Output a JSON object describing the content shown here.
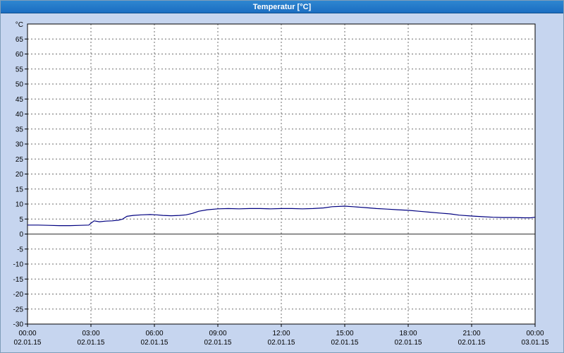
{
  "window": {
    "title": "Temperatur [°C]"
  },
  "colors": {
    "background": "#c6d5ef",
    "titlebar": "#1b6ec2",
    "titlebar_light": "#2e86d0",
    "titlebar_text": "#ffffff",
    "plot_bg": "#ffffff",
    "grid": "#6e6e6e",
    "zero_line": "#303030",
    "frame": "#000000",
    "text": "#000000",
    "line": "#000080"
  },
  "chart_data": {
    "type": "line",
    "title": "Temperatur [°C]",
    "y_axis_unit": "°C",
    "ylim": [
      -30,
      70
    ],
    "ytick_step": 5,
    "grid": true,
    "legend": "none",
    "y_tick_labels": [
      "65",
      "60",
      "55",
      "50",
      "45",
      "40",
      "35",
      "30",
      "25",
      "20",
      "15",
      "10",
      "5",
      "0",
      "-5",
      "-10",
      "-15",
      "-20",
      "-25",
      "-30"
    ],
    "xlim_hours": [
      0,
      24
    ],
    "x_ticks": [
      {
        "hour": 0,
        "time": "00:00",
        "date": "02.01.15"
      },
      {
        "hour": 3,
        "time": "03:00",
        "date": "02.01.15"
      },
      {
        "hour": 6,
        "time": "06:00",
        "date": "02.01.15"
      },
      {
        "hour": 9,
        "time": "09:00",
        "date": "02.01.15"
      },
      {
        "hour": 12,
        "time": "12:00",
        "date": "02.01.15"
      },
      {
        "hour": 15,
        "time": "15:00",
        "date": "02.01.15"
      },
      {
        "hour": 18,
        "time": "18:00",
        "date": "02.01.15"
      },
      {
        "hour": 21,
        "time": "21:00",
        "date": "02.01.15"
      },
      {
        "hour": 24,
        "time": "00:00",
        "date": "03.01.15"
      }
    ],
    "series": [
      {
        "name": "Temperatur",
        "color": "#000080",
        "points": [
          [
            0,
            3.0
          ],
          [
            0.5,
            3.0
          ],
          [
            1,
            2.9
          ],
          [
            1.5,
            2.8
          ],
          [
            2,
            2.8
          ],
          [
            2.5,
            2.9
          ],
          [
            2.9,
            3.0
          ],
          [
            3.0,
            3.6
          ],
          [
            3.15,
            4.4
          ],
          [
            3.4,
            4.1
          ],
          [
            3.7,
            4.3
          ],
          [
            4.0,
            4.4
          ],
          [
            4.3,
            4.6
          ],
          [
            4.5,
            5.0
          ],
          [
            4.7,
            5.9
          ],
          [
            5.0,
            6.2
          ],
          [
            5.4,
            6.4
          ],
          [
            5.8,
            6.5
          ],
          [
            6.1,
            6.4
          ],
          [
            6.4,
            6.2
          ],
          [
            6.8,
            6.1
          ],
          [
            7.2,
            6.2
          ],
          [
            7.5,
            6.4
          ],
          [
            7.8,
            6.9
          ],
          [
            8.1,
            7.6
          ],
          [
            8.5,
            8.1
          ],
          [
            9.0,
            8.4
          ],
          [
            9.5,
            8.5
          ],
          [
            10,
            8.4
          ],
          [
            10.5,
            8.5
          ],
          [
            11,
            8.5
          ],
          [
            11.5,
            8.4
          ],
          [
            12,
            8.5
          ],
          [
            12.5,
            8.5
          ],
          [
            13,
            8.4
          ],
          [
            13.5,
            8.5
          ],
          [
            14,
            8.7
          ],
          [
            14.4,
            9.1
          ],
          [
            15,
            9.3
          ],
          [
            15.4,
            9.1
          ],
          [
            16,
            8.8
          ],
          [
            16.5,
            8.5
          ],
          [
            17,
            8.3
          ],
          [
            17.5,
            8.1
          ],
          [
            18,
            7.9
          ],
          [
            18.5,
            7.6
          ],
          [
            19,
            7.3
          ],
          [
            19.5,
            7.0
          ],
          [
            20,
            6.7
          ],
          [
            20.4,
            6.3
          ],
          [
            21,
            6.0
          ],
          [
            21.5,
            5.8
          ],
          [
            22,
            5.6
          ],
          [
            22.5,
            5.5
          ],
          [
            23,
            5.5
          ],
          [
            23.5,
            5.4
          ],
          [
            23.8,
            5.4
          ],
          [
            24,
            5.6
          ]
        ]
      }
    ]
  }
}
